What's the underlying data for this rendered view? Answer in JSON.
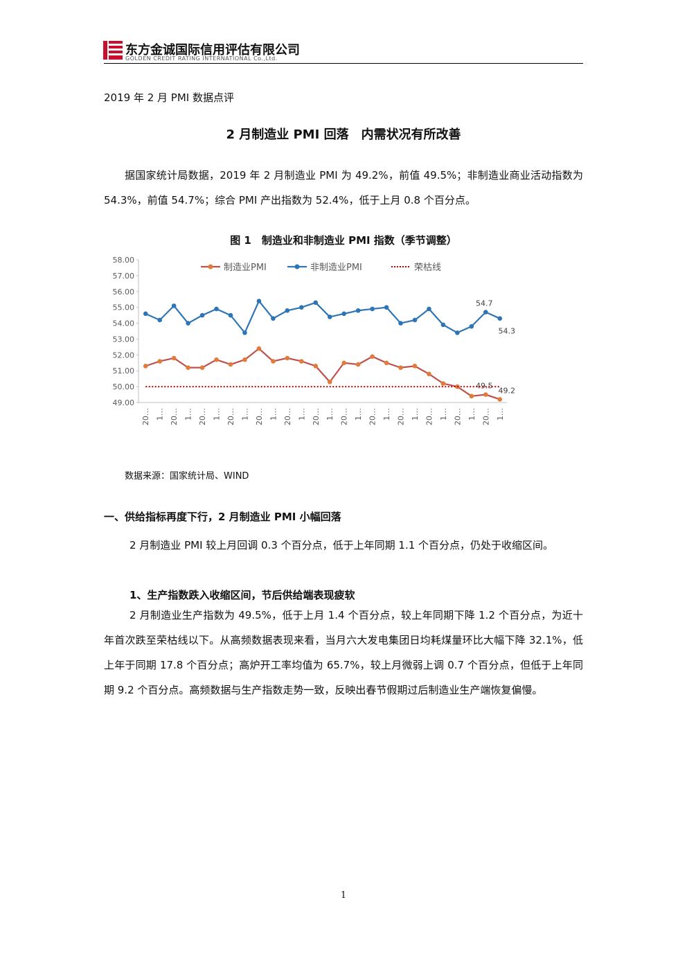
{
  "header": {
    "company": "东方金诚国际信用评估有限公司",
    "company_en": "GOLDEN CREDIT RATING INTERNATIONAL Co.,Ltd."
  },
  "doc_label": "2019 年 2 月 PMI 数据点评",
  "title": "2 月制造业 PMI 回落　内需状况有所改善",
  "intro": "据国家统计局数据，2019 年 2 月制造业 PMI 为 49.2%，前值 49.5%；非制造业商业活动指数为 54.3%，前值 54.7%；综合 PMI 产出指数为 52.4%，低于上月 0.8 个百分点。",
  "chart_data": {
    "type": "line",
    "title": "图 1　制造业和非制造业 PMI 指数（季节调整）",
    "categories": [
      "20…",
      "1…",
      "20…",
      "1…",
      "20…",
      "1…",
      "20…",
      "1…",
      "20…",
      "1…",
      "20…",
      "1…",
      "20…",
      "1…",
      "20…",
      "1…",
      "20…",
      "1…",
      "20…",
      "1…",
      "20…",
      "1…",
      "20…",
      "1…",
      "20…",
      "1…"
    ],
    "series": [
      {
        "name": "制造业PMI",
        "color": "#e07b39",
        "line_color": "#c0504d",
        "markers": true,
        "values": [
          51.3,
          51.6,
          51.8,
          51.2,
          51.2,
          51.7,
          51.4,
          51.7,
          52.4,
          51.6,
          51.8,
          51.6,
          51.3,
          50.3,
          51.5,
          51.4,
          51.9,
          51.5,
          51.2,
          51.3,
          50.8,
          50.2,
          50.0,
          49.4,
          49.5,
          49.2
        ],
        "value_labels": [
          null,
          null,
          null,
          null,
          null,
          null,
          null,
          null,
          null,
          null,
          null,
          null,
          null,
          null,
          null,
          null,
          null,
          null,
          null,
          null,
          null,
          null,
          null,
          null,
          "49.5",
          "49.2"
        ]
      },
      {
        "name": "非制造业PMI",
        "color": "#2e75b6",
        "line_color": "#2e75b6",
        "markers": true,
        "values": [
          54.6,
          54.2,
          55.1,
          54.0,
          54.5,
          54.9,
          54.5,
          53.4,
          55.4,
          54.3,
          54.8,
          55.0,
          55.3,
          54.4,
          54.6,
          54.8,
          54.9,
          55.0,
          54.0,
          54.2,
          54.9,
          53.9,
          53.4,
          53.8,
          54.7,
          54.3
        ],
        "value_labels": [
          null,
          null,
          null,
          null,
          null,
          null,
          null,
          null,
          null,
          null,
          null,
          null,
          null,
          null,
          null,
          null,
          null,
          null,
          null,
          null,
          null,
          null,
          null,
          null,
          "54.7",
          "54.3"
        ]
      },
      {
        "name": "荣枯线",
        "color": "#c00000",
        "line_color": "#c00000",
        "markers": false,
        "dotted": true,
        "values": [
          50,
          50,
          50,
          50,
          50,
          50,
          50,
          50,
          50,
          50,
          50,
          50,
          50,
          50,
          50,
          50,
          50,
          50,
          50,
          50,
          50,
          50,
          50,
          50,
          50,
          50
        ]
      }
    ],
    "ylim": [
      49,
      58
    ],
    "yticks": [
      {
        "value": 49,
        "label": "49.00"
      },
      {
        "value": 50,
        "label": "50.00"
      },
      {
        "value": 51,
        "label": "51.00"
      },
      {
        "value": 52,
        "label": "52.00"
      },
      {
        "value": 53,
        "label": "53.00"
      },
      {
        "value": 54,
        "label": "54.00"
      },
      {
        "value": 55,
        "label": "55.00"
      },
      {
        "value": 56,
        "label": "56.00"
      },
      {
        "value": 57,
        "label": "57.00"
      },
      {
        "value": 58,
        "label": "58.00"
      }
    ],
    "grid": false,
    "legend": "top"
  },
  "source": "数据来源：国家统计局、WIND",
  "section1": {
    "heading": "一、供给指标再度下行，2 月制造业 PMI 小幅回落",
    "paragraph": "2 月制造业 PMI 较上月回调 0.3 个百分点，低于上年同期 1.1 个百分点，仍处于收缩区间。",
    "subheading": "1、生产指数跌入收缩区间，节后供给端表现疲软",
    "subparagraph": "2 月制造业生产指数为 49.5%，低于上月 1.4 个百分点，较上年同期下降 1.2 个百分点，为近十年首次跌至荣枯线以下。从高频数据表现来看，当月六大发电集团日均耗煤量环比大幅下降 32.1%，低上年于同期 17.8 个百分点；高炉开工率均值为 65.7%，较上月微弱上调 0.7 个百分点，但低于上年同期 9.2 个百分点。高频数据与生产指数走势一致，反映出春节假期过后制造业生产端恢复偏慢。"
  },
  "page_number": "1"
}
